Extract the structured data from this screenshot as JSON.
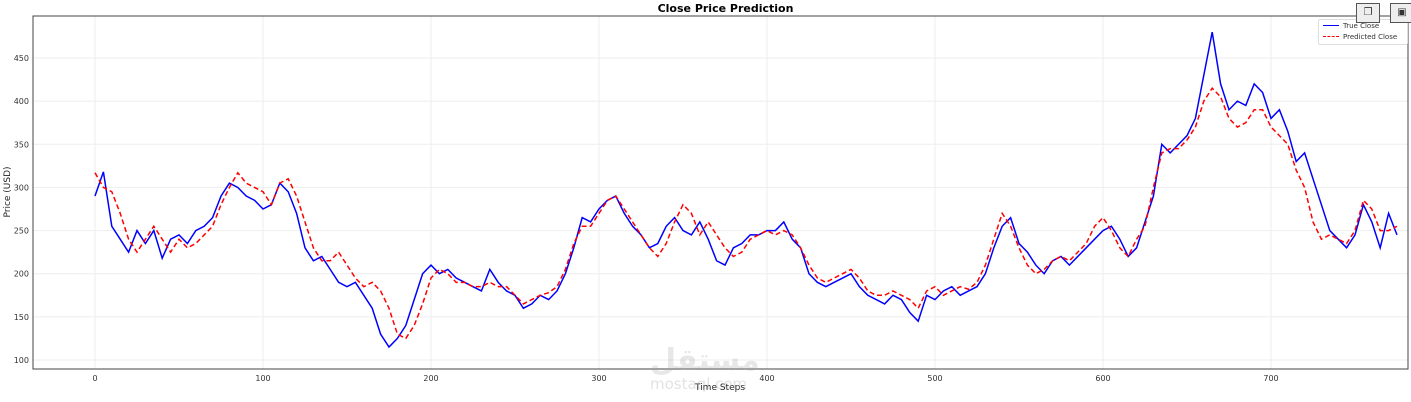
{
  "chart_data": {
    "type": "line",
    "title": "Close Price Prediction",
    "xlabel": "Time Steps",
    "ylabel": "Price (USD)",
    "xlim": [
      -37,
      773
    ],
    "ylim": [
      90,
      495
    ],
    "xticks": [
      0,
      100,
      200,
      300,
      400,
      500,
      600,
      700
    ],
    "yticks": [
      100,
      150,
      200,
      250,
      300,
      350,
      400,
      450
    ],
    "grid": true,
    "legend_position": "upper right",
    "x_step": 5,
    "series": [
      {
        "name": "True Close",
        "color": "#0000ff",
        "style": "solid",
        "values": [
          290,
          318,
          255,
          240,
          225,
          250,
          235,
          250,
          218,
          240,
          245,
          235,
          250,
          255,
          265,
          290,
          305,
          300,
          290,
          285,
          275,
          280,
          305,
          295,
          270,
          230,
          215,
          220,
          205,
          190,
          185,
          190,
          175,
          160,
          130,
          115,
          125,
          140,
          170,
          200,
          210,
          200,
          205,
          195,
          190,
          185,
          180,
          205,
          190,
          180,
          175,
          160,
          165,
          175,
          170,
          180,
          200,
          230,
          265,
          260,
          275,
          285,
          290,
          270,
          255,
          245,
          230,
          235,
          255,
          265,
          250,
          245,
          260,
          240,
          215,
          210,
          230,
          235,
          245,
          245,
          250,
          250,
          260,
          240,
          230,
          200,
          190,
          185,
          190,
          195,
          200,
          185,
          175,
          170,
          165,
          175,
          170,
          155,
          145,
          175,
          170,
          180,
          185,
          175,
          180,
          185,
          200,
          230,
          255,
          265,
          235,
          225,
          210,
          200,
          215,
          220,
          210,
          220,
          230,
          240,
          250,
          255,
          240,
          220,
          230,
          260,
          290,
          350,
          340,
          350,
          360,
          380,
          430,
          480,
          420,
          390,
          400,
          395,
          420,
          410,
          380,
          390,
          365,
          330,
          340,
          310,
          280,
          250,
          240,
          230,
          245,
          280,
          260,
          230,
          270,
          245
        ]
      },
      {
        "name": "Predicted Close",
        "color": "#ff0000",
        "style": "dashed",
        "values": [
          317,
          300,
          295,
          270,
          240,
          225,
          240,
          255,
          240,
          225,
          240,
          230,
          235,
          245,
          255,
          280,
          300,
          317,
          305,
          300,
          295,
          280,
          305,
          310,
          290,
          260,
          230,
          215,
          215,
          225,
          210,
          195,
          185,
          190,
          180,
          160,
          130,
          125,
          140,
          165,
          195,
          205,
          200,
          190,
          190,
          185,
          185,
          190,
          185,
          185,
          175,
          165,
          170,
          175,
          178,
          185,
          205,
          235,
          255,
          255,
          270,
          285,
          290,
          275,
          260,
          245,
          230,
          220,
          235,
          260,
          280,
          270,
          245,
          260,
          245,
          230,
          220,
          225,
          240,
          245,
          250,
          245,
          250,
          245,
          230,
          210,
          195,
          190,
          195,
          200,
          205,
          195,
          180,
          175,
          175,
          180,
          175,
          170,
          160,
          180,
          185,
          175,
          180,
          185,
          182,
          190,
          210,
          240,
          270,
          255,
          230,
          210,
          200,
          205,
          215,
          220,
          215,
          225,
          235,
          255,
          265,
          250,
          230,
          220,
          240,
          255,
          300,
          340,
          345,
          345,
          355,
          370,
          400,
          415,
          405,
          380,
          370,
          375,
          390,
          390,
          370,
          360,
          350,
          320,
          300,
          260,
          240,
          245,
          240,
          235,
          250,
          285,
          275,
          250,
          250,
          255
        ]
      }
    ]
  },
  "legend": {
    "true_label": "True Close",
    "pred_label": "Predicted Close"
  },
  "toolbar": {
    "copy_icon": "copy-icon",
    "save_icon": "save-icon"
  },
  "watermark": {
    "arabic": "مستقل",
    "latin": "mostaql.com"
  }
}
